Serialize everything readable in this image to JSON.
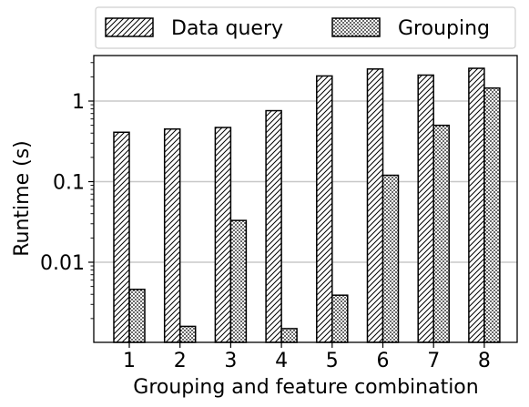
{
  "chart_data": {
    "type": "bar",
    "title": "",
    "xlabel": "Grouping and feature combination",
    "ylabel": "Runtime (s)",
    "yscale": "log",
    "ylim": [
      0.0012,
      3.5
    ],
    "ytick_values": [
      1,
      0.1,
      0.01
    ],
    "ytick_labels": [
      "1",
      "0.1",
      "0.01"
    ],
    "grid": "horizontal, major ticks",
    "legend_position": "top",
    "categories": [
      "1",
      "2",
      "3",
      "4",
      "5",
      "6",
      "7",
      "8"
    ],
    "series": [
      {
        "name": "Data query",
        "pattern": "diagonal-hatch",
        "values": [
          0.41,
          0.45,
          0.47,
          0.76,
          2.05,
          2.5,
          2.1,
          2.55
        ]
      },
      {
        "name": "Grouping",
        "pattern": "dots",
        "values": [
          0.0046,
          0.0016,
          0.033,
          0.0015,
          0.0039,
          0.12,
          0.5,
          1.45
        ]
      }
    ],
    "colors": {
      "fill": "#ffffff",
      "stroke": "#000000",
      "grid": "#c8c8c8"
    }
  }
}
